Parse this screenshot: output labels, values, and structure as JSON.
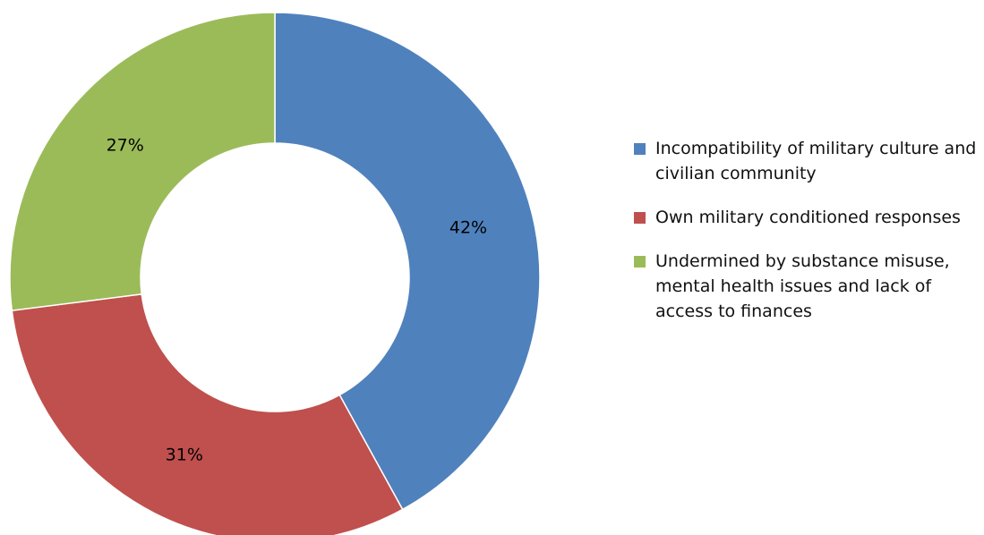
{
  "chart_data": {
    "type": "pie",
    "donut": true,
    "title": "",
    "series": [
      {
        "label": "Incompatibility of military culture and civilian community",
        "value": 42,
        "display": "42%",
        "color": "#4F81BD"
      },
      {
        "label": "Own military conditioned responses",
        "value": 31,
        "display": "31%",
        "color": "#C0504D"
      },
      {
        "label": "Undermined by substance misuse, mental health issues and lack of access to finances",
        "value": 27,
        "display": "27%",
        "color": "#9BBB59"
      }
    ],
    "legend_position": "right"
  }
}
